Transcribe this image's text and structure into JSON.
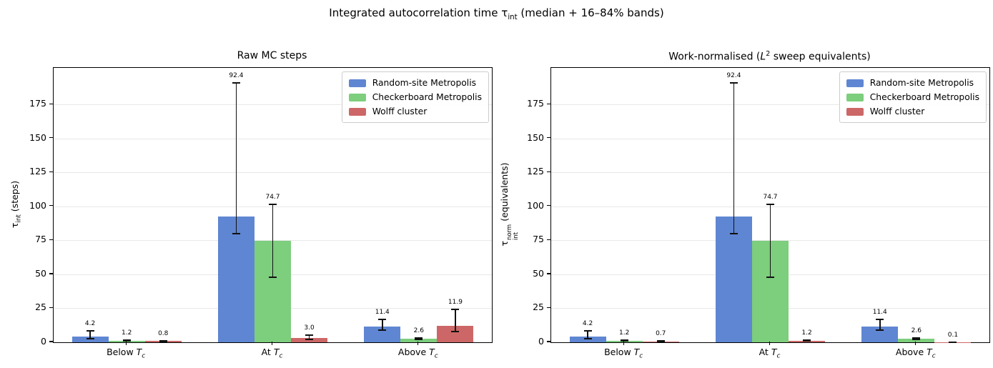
{
  "figure": {
    "suptitle_text": "Integrated autocorrelation time τ_int (median + 16–84% bands)",
    "suptitle_parts": {
      "pre": "Integrated autocorrelation time τ",
      "sub": "int",
      "post": " (median + 16–84% bands)"
    },
    "background": "#ffffff"
  },
  "colors": {
    "bar_blue": "#5f86d2",
    "bar_green": "#7dce7d",
    "bar_red": "#cd6767",
    "grid": "#e8e8e8",
    "axis": "#000000",
    "error_bar": "#111111",
    "legend_border": "#cccccc",
    "text": "#000000"
  },
  "chart_data": [
    {
      "type": "bar",
      "title": "Raw MC steps",
      "ylabel_text": "τ_int (steps)",
      "ylabel_parts": {
        "pre": "τ",
        "sub": "int",
        "post": " (steps)"
      },
      "yticks": [
        0,
        25,
        50,
        75,
        100,
        125,
        150,
        175
      ],
      "ylim": [
        0,
        202
      ],
      "grid": true,
      "legend_position": "upper right",
      "categories_text": [
        "Below T_c",
        "At T_c",
        "Above T_c"
      ],
      "categories_parts": [
        {
          "pre": "Below ",
          "var": "T",
          "sub": "c"
        },
        {
          "pre": "At ",
          "var": "T",
          "sub": "c"
        },
        {
          "pre": "Above ",
          "var": "T",
          "sub": "c"
        }
      ],
      "series": [
        {
          "name": "Random-site Metropolis",
          "color": "#5f86d2",
          "values": [
            4.2,
            92.4,
            11.4
          ],
          "band_low": [
            2.7,
            80.0,
            9.0
          ],
          "band_high": [
            8.3,
            191.0,
            17.0
          ]
        },
        {
          "name": "Checkerboard Metropolis",
          "color": "#7dce7d",
          "values": [
            1.2,
            74.7,
            2.6
          ],
          "band_low": [
            0.9,
            48.0,
            2.1
          ],
          "band_high": [
            1.7,
            101.5,
            3.3
          ]
        },
        {
          "name": "Wolff cluster",
          "color": "#cd6767",
          "values": [
            0.8,
            3.0,
            11.9
          ],
          "band_low": [
            0.6,
            2.0,
            7.8
          ],
          "band_high": [
            1.2,
            5.3,
            24.3
          ]
        }
      ]
    },
    {
      "type": "bar",
      "title": "Work-normalised (L^2 sweep equivalents)",
      "title_parts": {
        "pre": "Work-normalised (",
        "var": "L",
        "sup": "2",
        "post": " sweep equivalents)"
      },
      "ylabel_text": "τ_int^norm (equivalents)",
      "ylabel_parts": {
        "pre": "τ",
        "sup": "norm",
        "sub": "int",
        "post": " (equivalents)"
      },
      "yticks": [
        0,
        25,
        50,
        75,
        100,
        125,
        150,
        175
      ],
      "ylim": [
        0,
        202
      ],
      "grid": true,
      "legend_position": "upper right",
      "categories_text": [
        "Below T_c",
        "At T_c",
        "Above T_c"
      ],
      "categories_parts": [
        {
          "pre": "Below ",
          "var": "T",
          "sub": "c"
        },
        {
          "pre": "At ",
          "var": "T",
          "sub": "c"
        },
        {
          "pre": "Above ",
          "var": "T",
          "sub": "c"
        }
      ],
      "series": [
        {
          "name": "Random-site Metropolis",
          "color": "#5f86d2",
          "values": [
            4.2,
            92.4,
            11.4
          ],
          "band_low": [
            2.7,
            80.0,
            9.0
          ],
          "band_high": [
            8.3,
            191.0,
            17.0
          ]
        },
        {
          "name": "Checkerboard Metropolis",
          "color": "#7dce7d",
          "values": [
            1.2,
            74.7,
            2.6
          ],
          "band_low": [
            0.9,
            48.0,
            2.1
          ],
          "band_high": [
            1.7,
            101.5,
            3.3
          ]
        },
        {
          "name": "Wolff cluster",
          "color": "#cd6767",
          "values": [
            0.7,
            1.2,
            0.1
          ],
          "band_low": [
            0.5,
            0.9,
            0.06
          ],
          "band_high": [
            1.1,
            1.8,
            0.2
          ]
        }
      ]
    }
  ]
}
